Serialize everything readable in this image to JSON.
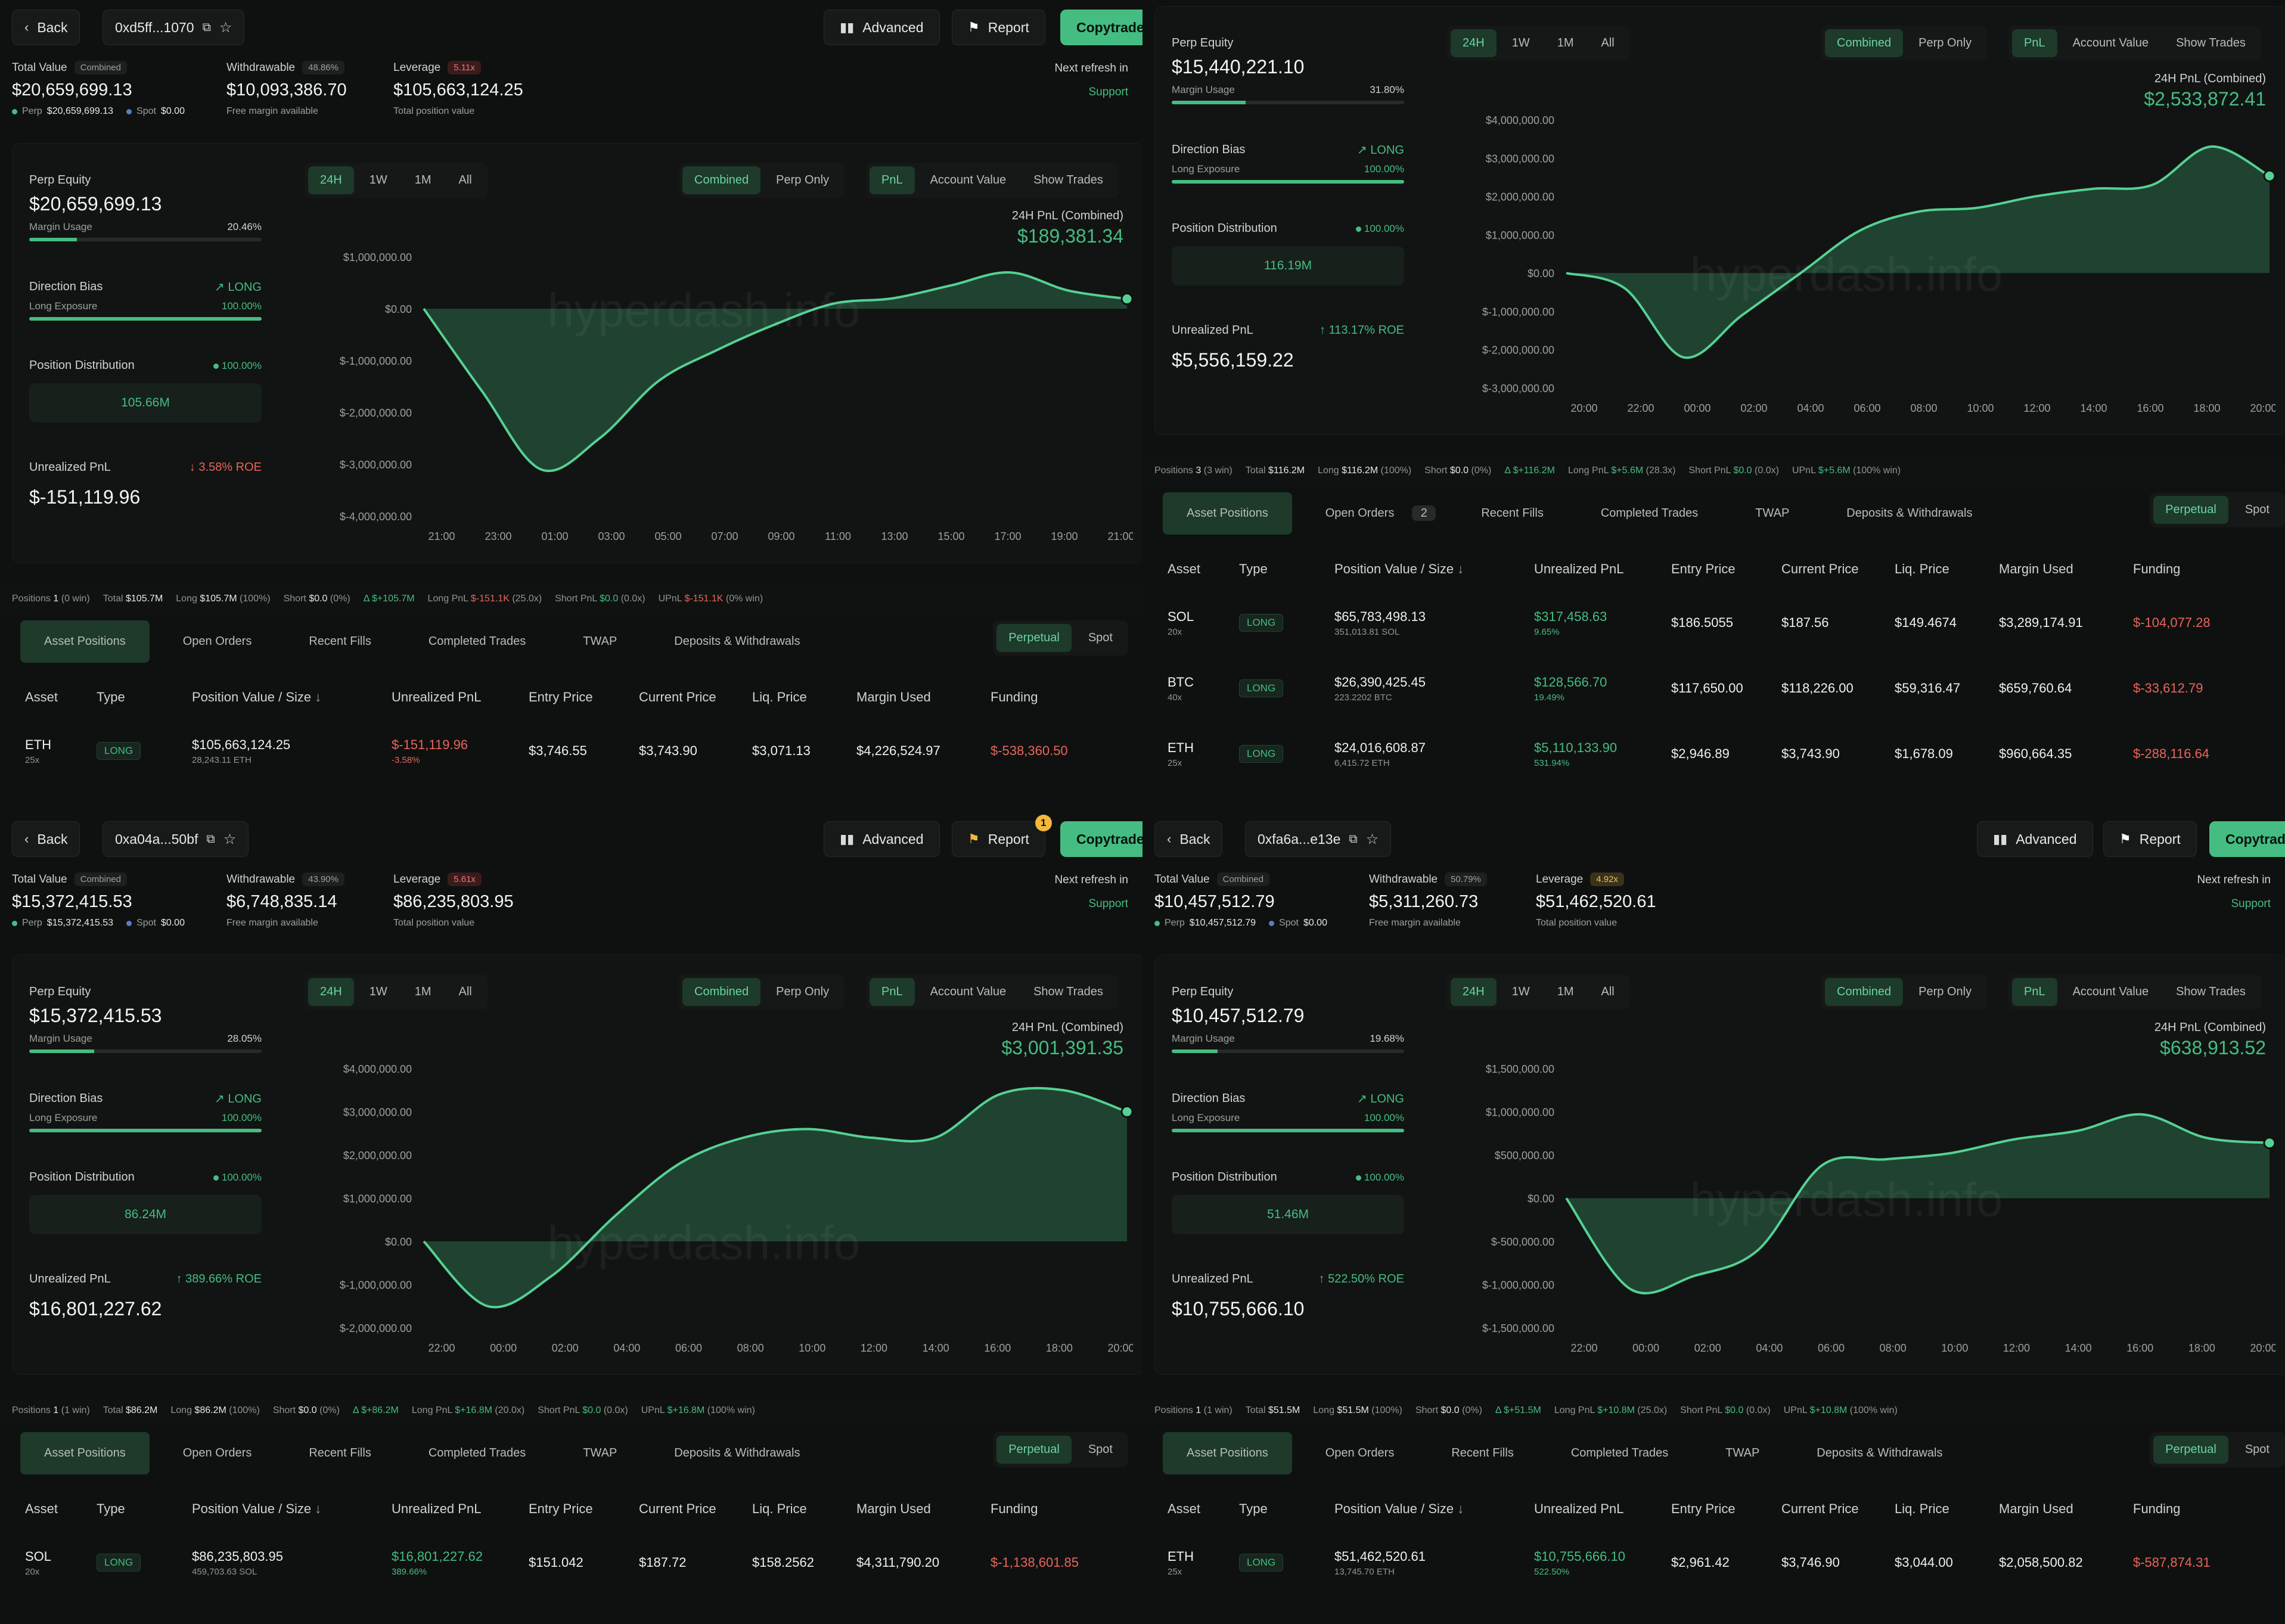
{
  "common": {
    "back": "Back",
    "advanced": "Advanced",
    "report": "Report",
    "copytrade": "Copytrade",
    "total_value": "Total Value",
    "combined_pill": "Combined",
    "withdrawable": "Withdrawable",
    "leverage": "Leverage",
    "free_margin": "Free margin available",
    "total_position_value": "Total position value",
    "next_refresh": "Next refresh in",
    "support": "Support",
    "perp_label": "Perp",
    "spot_label": "Spot",
    "perp_equity": "Perp Equity",
    "margin_usage": "Margin Usage",
    "direction_bias": "Direction Bias",
    "long": "LONG",
    "long_exposure": "Long Exposure",
    "position_distribution": "Position Distribution",
    "unrealized_pnl": "Unrealized PnL",
    "ranges": [
      "24H",
      "1W",
      "1M",
      "All"
    ],
    "modes": [
      "Combined",
      "Perp Only"
    ],
    "views": [
      "PnL",
      "Account Value"
    ],
    "show_trades": "Show Trades",
    "pnl_title": "24H PnL (Combined)",
    "watermark": "hyperdash.info",
    "tabs": [
      "Asset Positions",
      "Open Orders",
      "Recent Fills",
      "Completed Trades",
      "TWAP",
      "Deposits & Withdrawals"
    ],
    "perpetual": "Perpetual",
    "spot": "Spot",
    "columns": [
      "Asset",
      "Type",
      "Position Value / Size",
      "Unrealized PnL",
      "Entry Price",
      "Current Price",
      "Liq. Price",
      "Margin Used",
      "Funding"
    ],
    "pb_positions": "Positions",
    "pb_total": "Total",
    "pb_long": "Long",
    "pb_short": "Short",
    "pb_longpnl": "Long PnL",
    "pb_shortpnl": "Short PnL",
    "pb_upnl": "UPnL"
  },
  "panels": [
    {
      "address": "0xd5ff...1070",
      "total_value": "$20,659,699.13",
      "perp_value": "$20,659,699.13",
      "spot_value": "$0.00",
      "withdrawable_pct": "48.86%",
      "withdrawable": "$10,093,386.70",
      "leverage_x": "5.11x",
      "leverage_value": "$105,663,124.25",
      "perp_equity": "$20,659,699.13",
      "margin_usage_pct": "20.46%",
      "margin_fill": 0.2046,
      "long_exposure_pct": "100.00%",
      "dist_pct": "100.00%",
      "dist_value": "105.66M",
      "upnl": "$-151,119.96",
      "roe": "↓ 3.58% ROE",
      "upnl_negative": true,
      "pnl_24h": "$189,381.34",
      "y_ticks": [
        "$1,000,000.00",
        "$0.00",
        "$-1,000,000.00",
        "$-2,000,000.00",
        "$-3,000,000.00",
        "$-4,000,000.00"
      ],
      "x_ticks": [
        "21:00",
        "23:00",
        "01:00",
        "03:00",
        "05:00",
        "07:00",
        "09:00",
        "11:00",
        "13:00",
        "15:00",
        "17:00",
        "19:00",
        "21:00"
      ],
      "posbar": {
        "positions": "1",
        "wins": "(0 win)",
        "total": "$105.7M",
        "long": "$105.7M",
        "long_pct": "(100%)",
        "short": "$0.0",
        "short_pct": "(0%)",
        "delta": "Δ $+105.7M",
        "long_pnl": "$-151.1K",
        "long_lev": "(25.0x)",
        "short_pnl": "$0.0",
        "short_lev": "(0.0x)",
        "upnl": "$-151.1K",
        "upnl_win": "(0% win)",
        "negative": true
      },
      "open_orders_count": "",
      "rows": [
        {
          "asset": "ETH",
          "lev": "25x",
          "type": "LONG",
          "value": "$105,663,124.25",
          "size": "28,243.11 ETH",
          "upnl": "$-151,119.96",
          "upnl_pct": "-3.58%",
          "neg": true,
          "entry": "$3,746.55",
          "current": "$3,743.90",
          "liq": "$3,071.13",
          "margin": "$4,226,524.97",
          "funding": "$-538,360.50"
        }
      ]
    },
    {
      "address": "",
      "total_value": "",
      "perp_equity": "$15,440,221.10",
      "margin_usage_pct": "31.80%",
      "margin_fill": 0.318,
      "long_exposure_pct": "100.00%",
      "dist_pct": "100.00%",
      "dist_value": "116.19M",
      "upnl": "$5,556,159.22",
      "roe": "↑ 113.17% ROE",
      "upnl_negative": false,
      "pnl_24h": "$2,533,872.41",
      "y_ticks": [
        "$4,000,000.00",
        "$3,000,000.00",
        "$2,000,000.00",
        "$1,000,000.00",
        "$0.00",
        "$-1,000,000.00",
        "$-2,000,000.00",
        "$-3,000,000.00"
      ],
      "x_ticks": [
        "20:00",
        "22:00",
        "00:00",
        "02:00",
        "04:00",
        "06:00",
        "08:00",
        "10:00",
        "12:00",
        "14:00",
        "16:00",
        "18:00",
        "20:00"
      ],
      "posbar": {
        "positions": "3",
        "wins": "(3 win)",
        "total": "$116.2M",
        "long": "$116.2M",
        "long_pct": "(100%)",
        "short": "$0.0",
        "short_pct": "(0%)",
        "delta": "Δ $+116.2M",
        "long_pnl": "$+5.6M",
        "long_lev": "(28.3x)",
        "short_pnl": "$0.0",
        "short_lev": "(0.0x)",
        "upnl": "$+5.6M",
        "upnl_win": "(100% win)",
        "negative": false
      },
      "open_orders_count": "2",
      "rows": [
        {
          "asset": "SOL",
          "lev": "20x",
          "type": "LONG",
          "value": "$65,783,498.13",
          "size": "351,013.81 SOL",
          "upnl": "$317,458.63",
          "upnl_pct": "9.65%",
          "neg": false,
          "entry": "$186.5055",
          "current": "$187.56",
          "liq": "$149.4674",
          "margin": "$3,289,174.91",
          "funding": "$-104,077.28"
        },
        {
          "asset": "BTC",
          "lev": "40x",
          "type": "LONG",
          "value": "$26,390,425.45",
          "size": "223.2202 BTC",
          "upnl": "$128,566.70",
          "upnl_pct": "19.49%",
          "neg": false,
          "entry": "$117,650.00",
          "current": "$118,226.00",
          "liq": "$59,316.47",
          "margin": "$659,760.64",
          "funding": "$-33,612.79"
        },
        {
          "asset": "ETH",
          "lev": "25x",
          "type": "LONG",
          "value": "$24,016,608.87",
          "size": "6,415.72 ETH",
          "upnl": "$5,110,133.90",
          "upnl_pct": "531.94%",
          "neg": false,
          "entry": "$2,946.89",
          "current": "$3,743.90",
          "liq": "$1,678.09",
          "margin": "$960,664.35",
          "funding": "$-288,116.64"
        }
      ]
    },
    {
      "address": "0xa04a...50bf",
      "total_value": "$15,372,415.53",
      "perp_value": "$15,372,415.53",
      "spot_value": "$0.00",
      "withdrawable_pct": "43.90%",
      "withdrawable": "$6,748,835.14",
      "leverage_x": "5.61x",
      "leverage_value": "$86,235,803.95",
      "perp_equity": "$15,372,415.53",
      "margin_usage_pct": "28.05%",
      "margin_fill": 0.2805,
      "long_exposure_pct": "100.00%",
      "dist_pct": "100.00%",
      "dist_value": "86.24M",
      "upnl": "$16,801,227.62",
      "roe": "↑ 389.66% ROE",
      "upnl_negative": false,
      "pnl_24h": "$3,001,391.35",
      "report_badge": "1",
      "y_ticks": [
        "$4,000,000.00",
        "$3,000,000.00",
        "$2,000,000.00",
        "$1,000,000.00",
        "$0.00",
        "$-1,000,000.00",
        "$-2,000,000.00"
      ],
      "x_ticks": [
        "22:00",
        "00:00",
        "02:00",
        "04:00",
        "06:00",
        "08:00",
        "10:00",
        "12:00",
        "14:00",
        "16:00",
        "18:00",
        "20:00"
      ],
      "posbar": {
        "positions": "1",
        "wins": "(1 win)",
        "total": "$86.2M",
        "long": "$86.2M",
        "long_pct": "(100%)",
        "short": "$0.0",
        "short_pct": "(0%)",
        "delta": "Δ $+86.2M",
        "long_pnl": "$+16.8M",
        "long_lev": "(20.0x)",
        "short_pnl": "$0.0",
        "short_lev": "(0.0x)",
        "upnl": "$+16.8M",
        "upnl_win": "(100% win)",
        "negative": false
      },
      "open_orders_count": "",
      "rows": [
        {
          "asset": "SOL",
          "lev": "20x",
          "type": "LONG",
          "value": "$86,235,803.95",
          "size": "459,703.63 SOL",
          "upnl": "$16,801,227.62",
          "upnl_pct": "389.66%",
          "neg": false,
          "entry": "$151.042",
          "current": "$187.72",
          "liq": "$158.2562",
          "margin": "$4,311,790.20",
          "funding": "$-1,138,601.85"
        }
      ]
    },
    {
      "address": "0xfa6a...e13e",
      "total_value": "$10,457,512.79",
      "perp_value": "$10,457,512.79",
      "spot_value": "$0.00",
      "withdrawable_pct": "50.79%",
      "withdrawable": "$5,311,260.73",
      "leverage_x": "4.92x",
      "leverage_value": "$51,462,520.61",
      "perp_equity": "$10,457,512.79",
      "margin_usage_pct": "19.68%",
      "margin_fill": 0.1968,
      "long_exposure_pct": "100.00%",
      "dist_pct": "100.00%",
      "dist_value": "51.46M",
      "upnl": "$10,755,666.10",
      "roe": "↑ 522.50% ROE",
      "upnl_negative": false,
      "pnl_24h": "$638,913.52",
      "y_ticks": [
        "$1,500,000.00",
        "$1,000,000.00",
        "$500,000.00",
        "$0.00",
        "$-500,000.00",
        "$-1,000,000.00",
        "$-1,500,000.00"
      ],
      "x_ticks": [
        "22:00",
        "00:00",
        "02:00",
        "04:00",
        "06:00",
        "08:00",
        "10:00",
        "12:00",
        "14:00",
        "16:00",
        "18:00",
        "20:00"
      ],
      "posbar": {
        "positions": "1",
        "wins": "(1 win)",
        "total": "$51.5M",
        "long": "$51.5M",
        "long_pct": "(100%)",
        "short": "$0.0",
        "short_pct": "(0%)",
        "delta": "Δ $+51.5M",
        "long_pnl": "$+10.8M",
        "long_lev": "(25.0x)",
        "short_pnl": "$0.0",
        "short_lev": "(0.0x)",
        "upnl": "$+10.8M",
        "upnl_win": "(100% win)",
        "negative": false
      },
      "open_orders_count": "",
      "rows": [
        {
          "asset": "ETH",
          "lev": "25x",
          "type": "LONG",
          "value": "$51,462,520.61",
          "size": "13,745.70 ETH",
          "upnl": "$10,755,666.10",
          "upnl_pct": "522.50%",
          "neg": false,
          "entry": "$2,961.42",
          "current": "$3,746.90",
          "liq": "$3,044.00",
          "margin": "$2,058,500.82",
          "funding": "$-587,874.31"
        }
      ]
    }
  ],
  "chart_data": [
    {
      "type": "area",
      "title": "24H PnL (Combined)",
      "x": [
        "21:00",
        "23:00",
        "01:00",
        "03:00",
        "05:00",
        "07:00",
        "09:00",
        "11:00",
        "13:00",
        "15:00",
        "17:00",
        "19:00",
        "21:00"
      ],
      "values": [
        0,
        -1600000,
        -3100000,
        -2500000,
        -1400000,
        -800000,
        -300000,
        100000,
        200000,
        450000,
        700000,
        350000,
        189381
      ],
      "ylim": [
        -4000000,
        1000000
      ]
    },
    {
      "type": "area",
      "title": "24H PnL (Combined)",
      "x": [
        "20:00",
        "22:00",
        "00:00",
        "02:00",
        "04:00",
        "06:00",
        "08:00",
        "10:00",
        "12:00",
        "14:00",
        "16:00",
        "18:00",
        "20:00"
      ],
      "values": [
        0,
        -400000,
        -2200000,
        -1100000,
        0,
        1100000,
        1600000,
        1700000,
        2000000,
        2200000,
        2300000,
        3300000,
        2533872
      ],
      "ylim": [
        -3000000,
        4000000
      ]
    },
    {
      "type": "area",
      "title": "24H PnL (Combined)",
      "x": [
        "22:00",
        "00:00",
        "02:00",
        "04:00",
        "06:00",
        "08:00",
        "10:00",
        "12:00",
        "14:00",
        "16:00",
        "18:00",
        "20:00"
      ],
      "values": [
        0,
        -1500000,
        -800000,
        600000,
        1800000,
        2400000,
        2600000,
        2400000,
        2400000,
        3400000,
        3500000,
        3001391
      ],
      "ylim": [
        -2000000,
        4000000
      ]
    },
    {
      "type": "area",
      "title": "24H PnL (Combined)",
      "x": [
        "22:00",
        "00:00",
        "02:00",
        "04:00",
        "06:00",
        "08:00",
        "10:00",
        "12:00",
        "14:00",
        "16:00",
        "18:00",
        "20:00"
      ],
      "values": [
        0,
        -1050000,
        -900000,
        -600000,
        380000,
        450000,
        520000,
        680000,
        780000,
        970000,
        700000,
        638913
      ],
      "ylim": [
        -1500000,
        1500000
      ]
    }
  ]
}
